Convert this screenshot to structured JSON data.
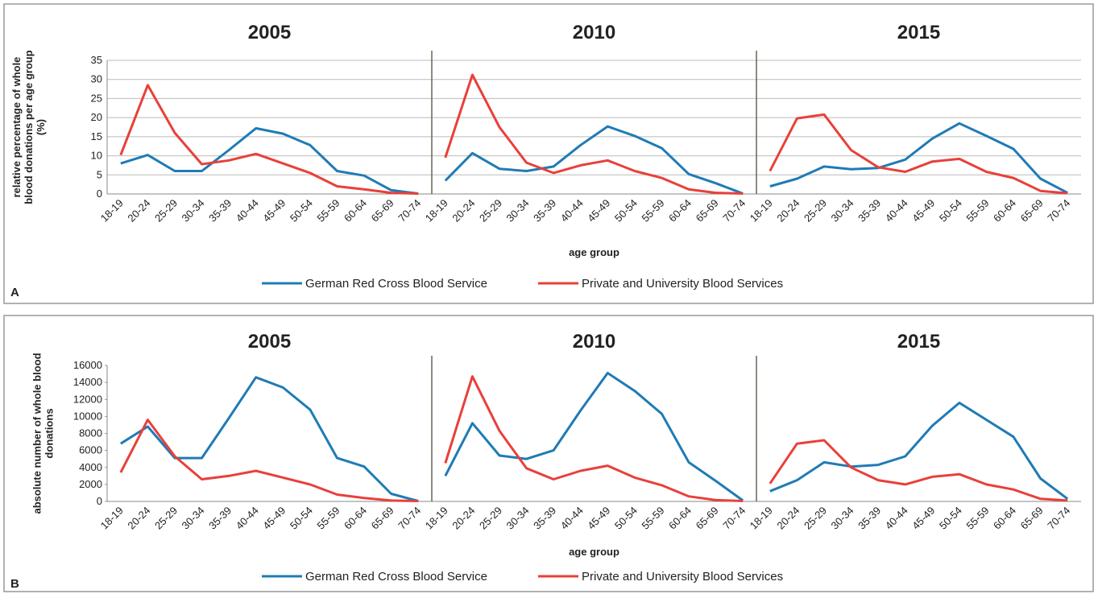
{
  "chart_data": [
    {
      "type": "line",
      "label": "A",
      "ylabel": [
        "relative percentage of whole",
        "blood donations per age group",
        "(%)"
      ],
      "xlabel": "age group",
      "categories": [
        "18-19",
        "20-24",
        "25-29",
        "30-34",
        "35-39",
        "40-44",
        "45-49",
        "50-54",
        "55-59",
        "60-64",
        "65-69",
        "70-74"
      ],
      "ylim": [
        0,
        35
      ],
      "yticks": [
        0,
        5,
        10,
        15,
        20,
        25,
        30,
        35
      ],
      "grid": true,
      "series": [
        {
          "name": "German Red Cross Blood Service",
          "color": "#1f7bb5"
        },
        {
          "name": "Private and University Blood Services",
          "color": "#e8403a"
        }
      ],
      "charts": [
        {
          "title": "2005",
          "series": [
            {
              "values": [
                8,
                10.2,
                6,
                6,
                11.5,
                17.2,
                15.8,
                12.8,
                6,
                4.8,
                1,
                0.1
              ]
            },
            {
              "values": [
                10.2,
                28.5,
                16,
                7.8,
                8.8,
                10.5,
                8,
                5.5,
                2,
                1.2,
                0.3,
                0.1
              ]
            }
          ]
        },
        {
          "title": "2010",
          "series": [
            {
              "values": [
                3.5,
                10.7,
                6.6,
                6,
                7.2,
                12.8,
                17.7,
                15.2,
                12,
                5.2,
                2.8,
                0.1
              ]
            },
            {
              "values": [
                9.5,
                31.2,
                17.5,
                8.2,
                5.5,
                7.5,
                8.8,
                6,
                4.2,
                1.2,
                0.3,
                0.1
              ]
            }
          ]
        },
        {
          "title": "2015",
          "series": [
            {
              "values": [
                2,
                4,
                7.2,
                6.5,
                6.8,
                9,
                14.5,
                18.5,
                15.2,
                11.8,
                4,
                0.3
              ]
            },
            {
              "values": [
                6,
                19.8,
                20.8,
                11.5,
                7,
                5.8,
                8.5,
                9.2,
                5.8,
                4.2,
                0.8,
                0.2
              ]
            }
          ]
        }
      ]
    },
    {
      "type": "line",
      "label": "B",
      "ylabel": [
        "absolute number of whole blood",
        "donations"
      ],
      "xlabel": "age group",
      "categories": [
        "18-19",
        "20-24",
        "25-29",
        "30-34",
        "35-39",
        "40-44",
        "45-49",
        "50-54",
        "55-59",
        "60-64",
        "65-69",
        "70-74"
      ],
      "ylim": [
        0,
        16000
      ],
      "yticks": [
        0,
        2000,
        4000,
        6000,
        8000,
        10000,
        12000,
        14000,
        16000
      ],
      "grid": false,
      "series": [
        {
          "name": "German Red Cross Blood Service",
          "color": "#1f7bb5"
        },
        {
          "name": "Private and University Blood Services",
          "color": "#e8403a"
        }
      ],
      "charts": [
        {
          "title": "2005",
          "series": [
            {
              "values": [
                6800,
                8800,
                5100,
                5100,
                9800,
                14600,
                13400,
                10800,
                5100,
                4100,
                900,
                50
              ]
            },
            {
              "values": [
                3400,
                9600,
                5300,
                2600,
                3000,
                3600,
                2800,
                2000,
                800,
                400,
                100,
                50
              ]
            }
          ]
        },
        {
          "title": "2010",
          "series": [
            {
              "values": [
                3000,
                9200,
                5400,
                5000,
                6000,
                10700,
                15100,
                13000,
                10300,
                4600,
                2400,
                100
              ]
            },
            {
              "values": [
                4500,
                14700,
                8300,
                3900,
                2600,
                3600,
                4200,
                2800,
                1900,
                600,
                150,
                50
              ]
            }
          ]
        },
        {
          "title": "2015",
          "series": [
            {
              "values": [
                1200,
                2500,
                4600,
                4100,
                4300,
                5300,
                8900,
                11600,
                9600,
                7600,
                2700,
                300
              ]
            },
            {
              "values": [
                2100,
                6800,
                7200,
                4000,
                2500,
                2000,
                2900,
                3200,
                2000,
                1400,
                300,
                100
              ]
            }
          ]
        }
      ]
    }
  ]
}
